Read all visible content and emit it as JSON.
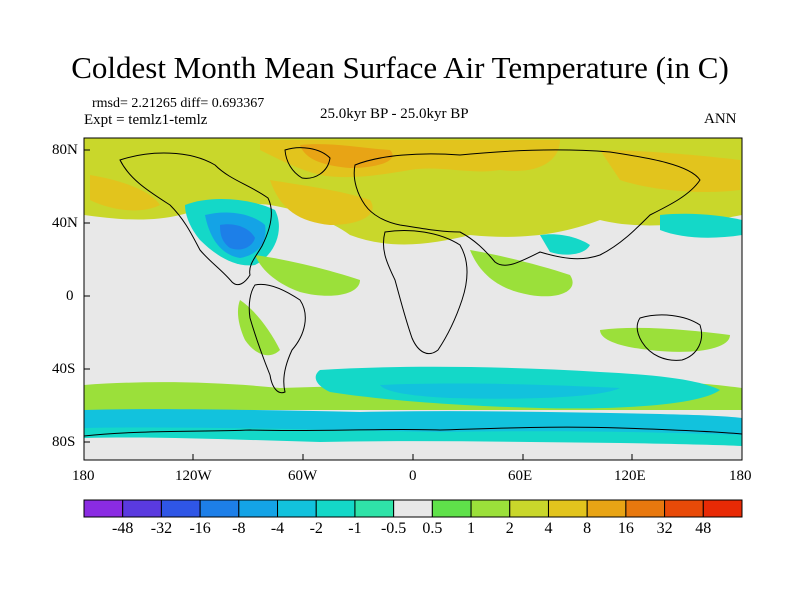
{
  "title": "Coldest Month Mean Surface Air Temperature (in C)",
  "stats": "rmsd= 2.21265 diff= 0.693367",
  "experiment": "Expt = temlz1-temlz",
  "period": "25.0kyr BP - 25.0kyr BP",
  "season": "ANN",
  "lat_ticks": [
    "80N",
    "40N",
    "0",
    "40S",
    "80S"
  ],
  "lon_ticks": [
    "180",
    "120W",
    "60W",
    "0",
    "60E",
    "120E",
    "180"
  ],
  "colorbar": {
    "labels": [
      "-48",
      "-32",
      "-16",
      "-8",
      "-4",
      "-2",
      "-1",
      "-0.5",
      "0.5",
      "1",
      "2",
      "4",
      "8",
      "16",
      "32",
      "48"
    ],
    "colors": [
      "#8a2be2",
      "#5a3adf",
      "#2f56e6",
      "#1d7fe8",
      "#14a3e6",
      "#12c2dd",
      "#14d8c8",
      "#2fe3a8",
      "#e8e8e8",
      "#5fe14a",
      "#9be03a",
      "#c9d72b",
      "#e2c41d",
      "#e8a415",
      "#e8780e",
      "#e84a08",
      "#e82a05"
    ]
  },
  "colors": {
    "land_zero": "#e8e8e8",
    "ocean_default": "#e8e8e8",
    "coast": "#000000"
  }
}
